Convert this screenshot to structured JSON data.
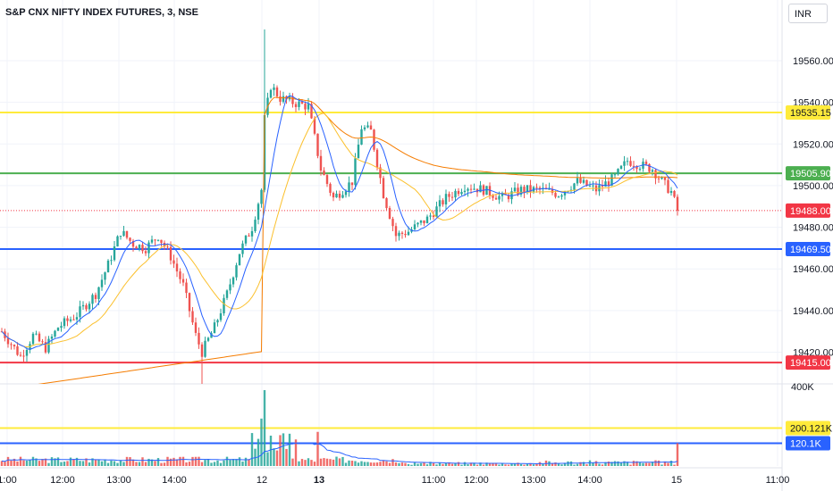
{
  "header": {
    "title": "S&P CNX NIFTY INDEX FUTURES, 3, NSE",
    "currency": "INR"
  },
  "colors": {
    "up": "#26a69a",
    "down": "#ef5350",
    "ma_fast": "#2962ff",
    "ma_slow": "#fbc02d",
    "vwap": "#f57c00",
    "line_yellow": "#ffeb3b",
    "line_green": "#4caf50",
    "line_blue": "#2962ff",
    "line_red": "#f23645"
  },
  "chart_data": {
    "type": "candlestick",
    "y_axis": {
      "min": 19400,
      "max": 19580,
      "ticks": [
        "19560.00",
        "19540.00",
        "19520.00",
        "19500.00",
        "19480.00",
        "19460.00",
        "19440.00",
        "19420.00"
      ]
    },
    "x_axis_labels": [
      "1:00",
      "12:00",
      "13:00",
      "14:00",
      "12",
      "13",
      "11:00",
      "12:00",
      "13:00",
      "14:00",
      "15",
      "11:00"
    ],
    "price_lines": [
      {
        "label": "19535.15",
        "value": 19535.15,
        "color": "#ffeb3b",
        "text_color": "#131722"
      },
      {
        "label": "19505.90",
        "value": 19505.9,
        "color": "#4caf50",
        "text_color": "#ffffff"
      },
      {
        "label": "19469.50",
        "value": 19469.5,
        "color": "#2962ff",
        "text_color": "#ffffff"
      },
      {
        "label": "19415.00",
        "value": 19415.0,
        "color": "#f23645",
        "text_color": "#ffffff"
      }
    ],
    "current_price": {
      "label": "19488.00",
      "value": 19488.0,
      "color": "#f23645"
    },
    "volume": {
      "axis_label": "400K",
      "levels": [
        {
          "label": "200.121K",
          "value": 200121,
          "color": "#ffeb3b",
          "text_color": "#131722"
        },
        {
          "label": "120.1K",
          "value": 120100,
          "color": "#2962ff",
          "text_color": "#ffffff"
        }
      ]
    },
    "anchors": [
      [
        0,
        19430
      ],
      [
        6,
        19418
      ],
      [
        10,
        19428
      ],
      [
        14,
        19422
      ],
      [
        18,
        19432
      ],
      [
        24,
        19438
      ],
      [
        30,
        19448
      ],
      [
        34,
        19462
      ],
      [
        38,
        19478
      ],
      [
        42,
        19472
      ],
      [
        46,
        19470
      ],
      [
        50,
        19476
      ],
      [
        54,
        19466
      ],
      [
        58,
        19452
      ],
      [
        62,
        19428
      ],
      [
        64,
        19420
      ],
      [
        68,
        19432
      ],
      [
        72,
        19448
      ],
      [
        76,
        19468
      ],
      [
        80,
        19480
      ],
      [
        83,
        19498
      ],
      [
        84,
        19532
      ],
      [
        86,
        19548
      ],
      [
        89,
        19542
      ],
      [
        93,
        19540
      ],
      [
        98,
        19538
      ],
      [
        102,
        19508
      ],
      [
        106,
        19494
      ],
      [
        112,
        19502
      ],
      [
        115,
        19528
      ],
      [
        118,
        19526
      ],
      [
        122,
        19496
      ],
      [
        126,
        19476
      ],
      [
        130,
        19478
      ],
      [
        136,
        19484
      ],
      [
        142,
        19494
      ],
      [
        148,
        19500
      ],
      [
        154,
        19498
      ],
      [
        160,
        19494
      ],
      [
        166,
        19498
      ],
      [
        172,
        19498
      ],
      [
        178,
        19496
      ],
      [
        184,
        19502
      ],
      [
        190,
        19498
      ],
      [
        196,
        19504
      ],
      [
        200,
        19512
      ],
      [
        204,
        19510
      ],
      [
        208,
        19508
      ],
      [
        211,
        19502
      ],
      [
        214,
        19497
      ],
      [
        216,
        19488
      ]
    ],
    "candle_count": 217
  }
}
